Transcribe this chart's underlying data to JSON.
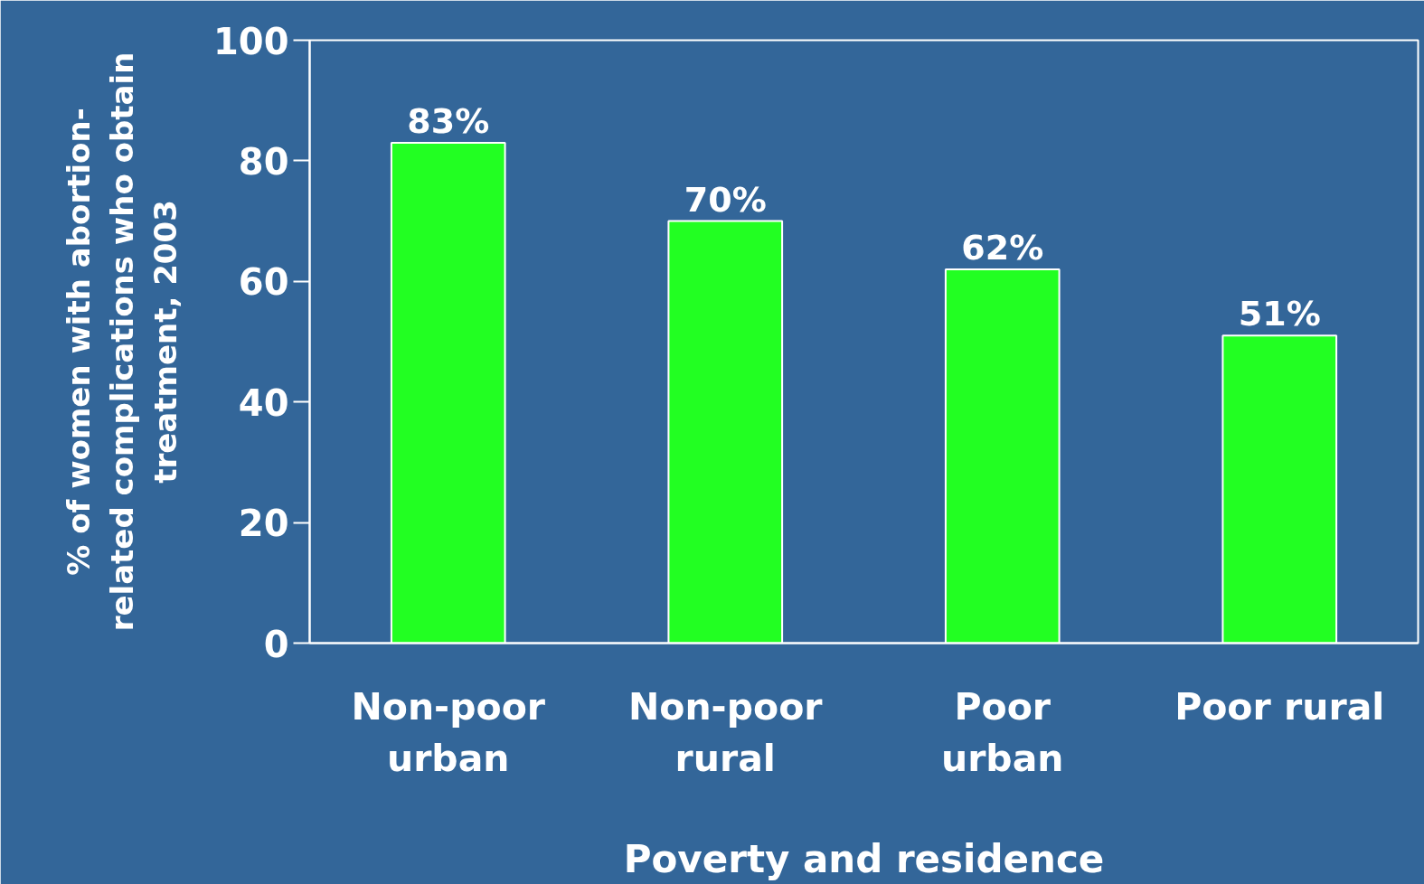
{
  "chart_data": {
    "type": "bar",
    "categories": [
      "Non-poor\nurban",
      "Non-poor\nrural",
      "Poor\nurban",
      "Poor rural"
    ],
    "values": [
      83,
      70,
      62,
      51
    ],
    "color": "#22ff22",
    "value_labels": [
      "83%",
      "70%",
      "62%",
      "51%"
    ],
    "xlabel": "Poverty and residence",
    "ylabel": "% of women with abortion-\nrelated complications who obtain\ntreatment, 2003",
    "ylim": [
      0,
      100
    ],
    "yticks": [
      0,
      20,
      40,
      60,
      80,
      100
    ],
    "grid": false
  }
}
